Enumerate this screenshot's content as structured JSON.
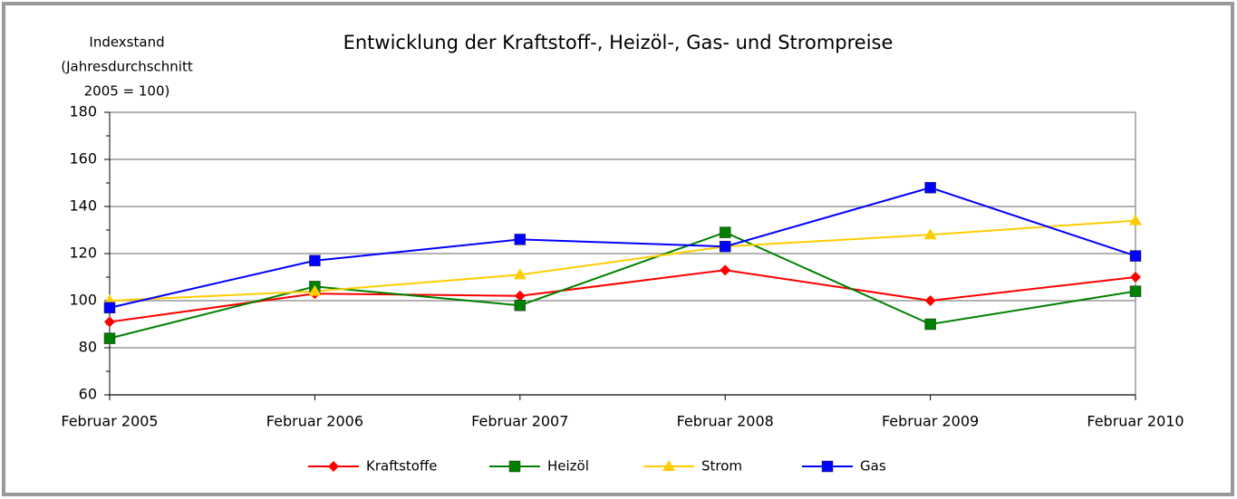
{
  "chart_data": {
    "type": "line",
    "title": "Entwicklung der Kraftstoff-, Heizöl-, Gas- und Strompreise",
    "y_label": [
      "Indexstand",
      "(Jahresdurchschnitt",
      "2005 = 100)"
    ],
    "categories": [
      "Februar 2005",
      "Februar 2006",
      "Februar 2007",
      "Februar 2008",
      "Februar 2009",
      "Februar 2010"
    ],
    "series": [
      {
        "name": "Kraftstoffe",
        "color": "#ff0000",
        "marker": "diamond",
        "values": [
          91,
          103,
          102,
          113,
          100,
          110
        ]
      },
      {
        "name": "Heizöl",
        "color": "#008000",
        "marker": "square",
        "values": [
          84,
          106,
          98,
          129,
          90,
          104
        ]
      },
      {
        "name": "Strom",
        "color": "#ffcc00",
        "marker": "triangle",
        "values": [
          100,
          104,
          111,
          123,
          128,
          134
        ]
      },
      {
        "name": "Gas",
        "color": "#0000ff",
        "marker": "square",
        "values": [
          97,
          117,
          126,
          123,
          148,
          119
        ]
      }
    ],
    "ylim": [
      60,
      180
    ],
    "yticks": [
      60,
      80,
      100,
      120,
      140,
      160,
      180
    ],
    "grid": true,
    "legend": "bottom"
  }
}
